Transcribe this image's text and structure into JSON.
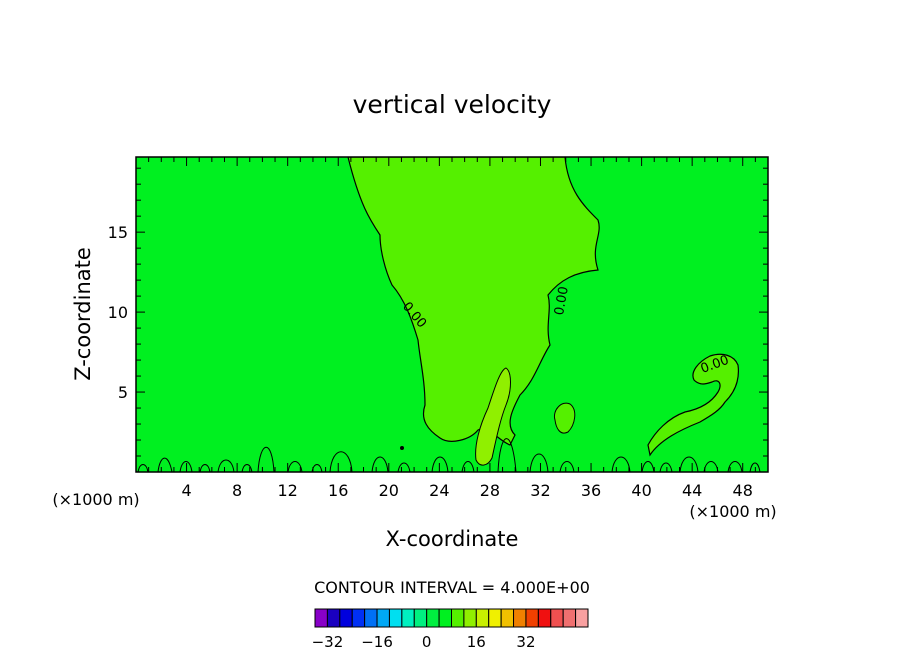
{
  "chart_data": {
    "type": "contour",
    "title": "vertical velocity",
    "xlabel": "X-coordinate",
    "ylabel": "Z-coordinate",
    "x_unit_label": "(×1000 m)",
    "xlim": [
      0,
      50
    ],
    "ylim": [
      0,
      19.7
    ],
    "x_ticks": [
      4,
      8,
      12,
      16,
      20,
      24,
      28,
      32,
      36,
      40,
      44,
      48
    ],
    "y_ticks": [
      5,
      10,
      15
    ],
    "contour_interval_label": "CONTOUR INTERVAL = 4.000E+00",
    "contour_labels": [
      {
        "text": "0.00",
        "x": 22,
        "z": 9.8,
        "angle": 50
      },
      {
        "text": "0.00",
        "x": 33.7,
        "z": 10.7,
        "angle": -80
      },
      {
        "text": "0.00",
        "x": 45.8,
        "z": 6.7,
        "angle": -20
      }
    ],
    "colorbar": {
      "levels_min": -36,
      "levels_step": 4,
      "tick_labels": [
        "-32",
        "-16",
        "0",
        "16",
        "32"
      ],
      "tick_values": [
        -32,
        -16,
        0,
        16,
        32
      ],
      "colors": [
        "#8800c8",
        "#1a00c0",
        "#0000dd",
        "#0030f5",
        "#0070f5",
        "#00a8f5",
        "#00dff0",
        "#00f0c0",
        "#00f080",
        "#00f040",
        "#00f020",
        "#55f000",
        "#90f000",
        "#c8f000",
        "#f0f000",
        "#f0c000",
        "#f08000",
        "#f04000",
        "#f01010",
        "#f05050",
        "#f07070",
        "#f8a0a0"
      ]
    },
    "fill_colors": {
      "background_zero_band": "#00f020",
      "positive_band_1": "#55f000",
      "positive_band_2": "#90f000"
    }
  }
}
